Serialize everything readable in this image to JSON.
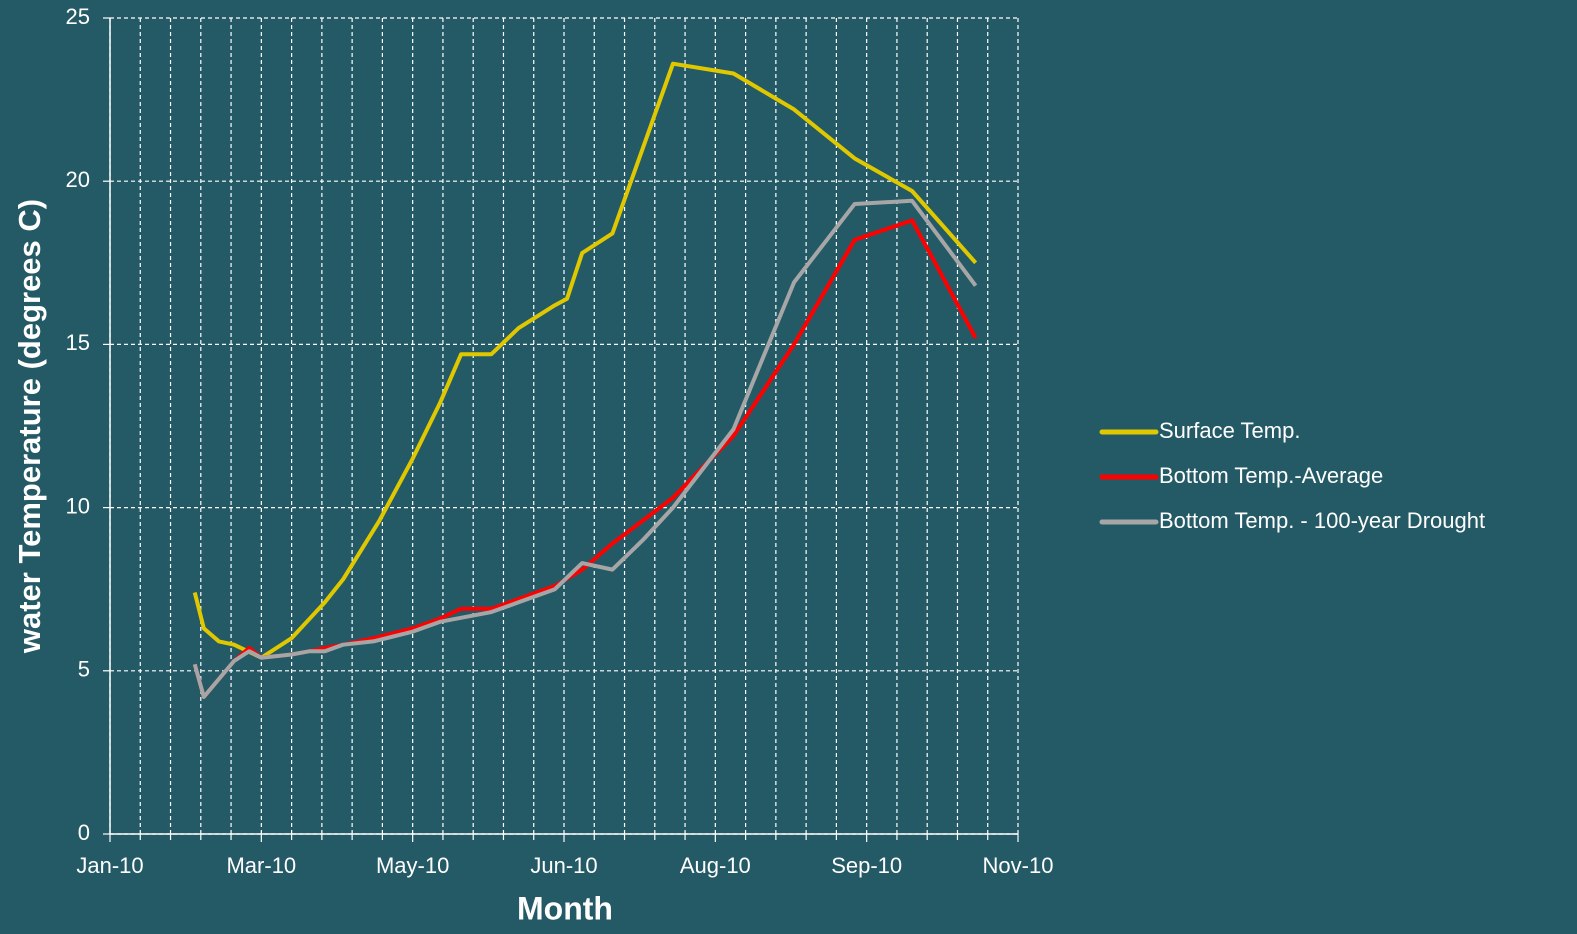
{
  "chart_data": {
    "type": "line",
    "x_label": "Month",
    "y_label": "water Temperature (degrees C)",
    "xlim": [
      0,
      300
    ],
    "xticks": [
      {
        "value": 0,
        "label": "Jan-10"
      },
      {
        "value": 50,
        "label": "Mar-10"
      },
      {
        "value": 100,
        "label": "May-10"
      },
      {
        "value": 150,
        "label": "Jun-10"
      },
      {
        "value": 200,
        "label": "Aug-10"
      },
      {
        "value": 250,
        "label": "Sep-10"
      },
      {
        "value": 300,
        "label": "Nov-10"
      }
    ],
    "ylim": [
      0,
      25
    ],
    "yticks": [
      0,
      5,
      10,
      15,
      20,
      25
    ],
    "grid": true,
    "legend": "right",
    "series": [
      {
        "name": "Surface Temp.",
        "color": "#e0c800",
        "x": [
          28,
          31,
          36,
          41,
          50,
          60,
          66,
          71,
          77,
          89,
          100,
          109,
          116,
          126,
          135,
          147,
          151,
          156,
          166,
          176,
          186,
          206,
          226,
          246,
          265,
          286
        ],
        "values": [
          7.4,
          6.3,
          5.9,
          5.8,
          5.4,
          6.0,
          6.6,
          7.1,
          7.8,
          9.6,
          11.5,
          13.2,
          14.7,
          14.7,
          15.5,
          16.2,
          16.4,
          17.8,
          18.4,
          21.0,
          23.6,
          23.3,
          22.2,
          20.7,
          19.7,
          17.5
        ]
      },
      {
        "name": "Bottom Temp.-Average",
        "color": "#ff0000",
        "x": [
          28,
          31,
          41,
          46,
          50,
          60,
          66,
          71,
          77,
          87,
          100,
          109,
          116,
          126,
          135,
          147,
          156,
          166,
          176,
          186,
          206,
          226,
          246,
          265,
          286
        ],
        "values": [
          5.2,
          4.2,
          5.3,
          5.7,
          5.4,
          5.5,
          5.6,
          5.7,
          5.8,
          6.0,
          6.3,
          6.6,
          6.9,
          6.9,
          7.2,
          7.6,
          8.1,
          8.9,
          9.6,
          10.3,
          12.2,
          15.0,
          18.2,
          18.8,
          15.2
        ]
      },
      {
        "name": "Bottom Temp. - 100-year Drought",
        "color": "#a6a6a6",
        "x": [
          28,
          31,
          41,
          46,
          50,
          60,
          66,
          71,
          77,
          87,
          100,
          109,
          126,
          135,
          147,
          156,
          166,
          176,
          186,
          206,
          226,
          246,
          265,
          286
        ],
        "values": [
          5.2,
          4.2,
          5.3,
          5.6,
          5.4,
          5.5,
          5.6,
          5.6,
          5.8,
          5.9,
          6.2,
          6.5,
          6.8,
          7.1,
          7.5,
          8.3,
          8.1,
          9.0,
          10.0,
          12.4,
          16.9,
          19.3,
          19.4,
          16.8
        ]
      }
    ]
  }
}
